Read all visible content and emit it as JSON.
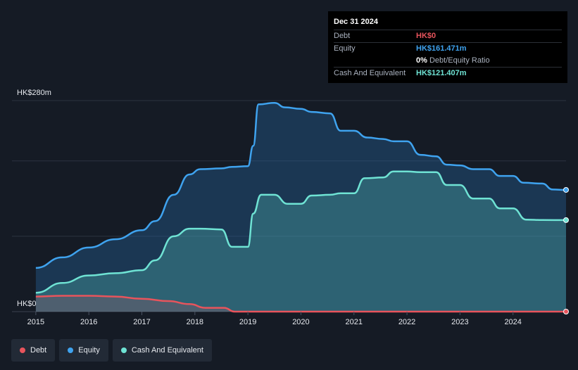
{
  "tooltip": {
    "date": "Dec 31 2024",
    "rows": [
      {
        "label": "Debt",
        "value": "HK$0",
        "color": "#e8545c"
      },
      {
        "label": "Equity",
        "value": "HK$161.471m",
        "color": "#3fa3ef"
      },
      {
        "label": "",
        "value": "0%",
        "suffix": "Debt/Equity Ratio",
        "color": "#ffffff"
      },
      {
        "label": "Cash And Equivalent",
        "value": "HK$121.407m",
        "color": "#6fe3d4"
      }
    ]
  },
  "legend": [
    {
      "label": "Debt",
      "color": "#e8545c"
    },
    {
      "label": "Equity",
      "color": "#3fa3ef"
    },
    {
      "label": "Cash And Equivalent",
      "color": "#6fe3d4"
    }
  ],
  "chart_data": {
    "type": "area",
    "ylim": [
      0,
      280
    ],
    "y_tick_labels": [
      "HK$0",
      "HK$280m"
    ],
    "x_ticks": [
      2015,
      2016,
      2017,
      2018,
      2019,
      2020,
      2021,
      2022,
      2023,
      2024
    ],
    "series": [
      {
        "name": "Equity",
        "color": "#3fa3ef",
        "points": [
          [
            2015.0,
            58
          ],
          [
            2015.5,
            72
          ],
          [
            2016.0,
            85
          ],
          [
            2016.5,
            96
          ],
          [
            2017.0,
            108
          ],
          [
            2017.25,
            120
          ],
          [
            2017.6,
            155
          ],
          [
            2017.9,
            182
          ],
          [
            2018.1,
            189
          ],
          [
            2018.5,
            190
          ],
          [
            2018.7,
            192
          ],
          [
            2019.0,
            193
          ],
          [
            2019.1,
            220
          ],
          [
            2019.2,
            275
          ],
          [
            2019.5,
            277
          ],
          [
            2019.7,
            271
          ],
          [
            2020.0,
            269
          ],
          [
            2020.2,
            265
          ],
          [
            2020.55,
            263
          ],
          [
            2020.75,
            240
          ],
          [
            2021.0,
            240
          ],
          [
            2021.25,
            231
          ],
          [
            2021.55,
            229
          ],
          [
            2021.75,
            226
          ],
          [
            2022.0,
            226
          ],
          [
            2022.25,
            208
          ],
          [
            2022.55,
            206
          ],
          [
            2022.75,
            195
          ],
          [
            2023.0,
            194
          ],
          [
            2023.25,
            189
          ],
          [
            2023.55,
            189
          ],
          [
            2023.75,
            180
          ],
          [
            2024.0,
            180
          ],
          [
            2024.2,
            171
          ],
          [
            2024.55,
            170
          ],
          [
            2024.75,
            162
          ],
          [
            2025.0,
            161.5
          ]
        ]
      },
      {
        "name": "Cash And Equivalent",
        "color": "#6fe3d4",
        "points": [
          [
            2015.0,
            25
          ],
          [
            2015.5,
            38
          ],
          [
            2016.0,
            48
          ],
          [
            2016.5,
            51
          ],
          [
            2017.0,
            55
          ],
          [
            2017.25,
            68
          ],
          [
            2017.6,
            100
          ],
          [
            2017.9,
            110
          ],
          [
            2018.1,
            110
          ],
          [
            2018.5,
            109
          ],
          [
            2018.7,
            86
          ],
          [
            2019.0,
            86
          ],
          [
            2019.1,
            130
          ],
          [
            2019.25,
            155
          ],
          [
            2019.5,
            155
          ],
          [
            2019.75,
            143
          ],
          [
            2020.0,
            143
          ],
          [
            2020.2,
            154
          ],
          [
            2020.55,
            155
          ],
          [
            2020.75,
            157
          ],
          [
            2021.0,
            157
          ],
          [
            2021.2,
            177
          ],
          [
            2021.55,
            178
          ],
          [
            2021.75,
            186
          ],
          [
            2022.0,
            186
          ],
          [
            2022.25,
            185
          ],
          [
            2022.55,
            185
          ],
          [
            2022.75,
            168
          ],
          [
            2023.0,
            168
          ],
          [
            2023.25,
            150
          ],
          [
            2023.55,
            150
          ],
          [
            2023.75,
            137
          ],
          [
            2024.0,
            137
          ],
          [
            2024.25,
            122
          ],
          [
            2024.55,
            121.5
          ],
          [
            2025.0,
            121.4
          ]
        ]
      },
      {
        "name": "Debt",
        "color": "#e8545c",
        "points": [
          [
            2015.0,
            20
          ],
          [
            2015.5,
            21
          ],
          [
            2016.0,
            21
          ],
          [
            2016.5,
            20
          ],
          [
            2017.0,
            17
          ],
          [
            2017.5,
            14
          ],
          [
            2017.9,
            10
          ],
          [
            2018.2,
            5
          ],
          [
            2018.55,
            5
          ],
          [
            2018.75,
            0
          ],
          [
            2019.0,
            0
          ],
          [
            2025.0,
            0
          ]
        ]
      }
    ]
  }
}
